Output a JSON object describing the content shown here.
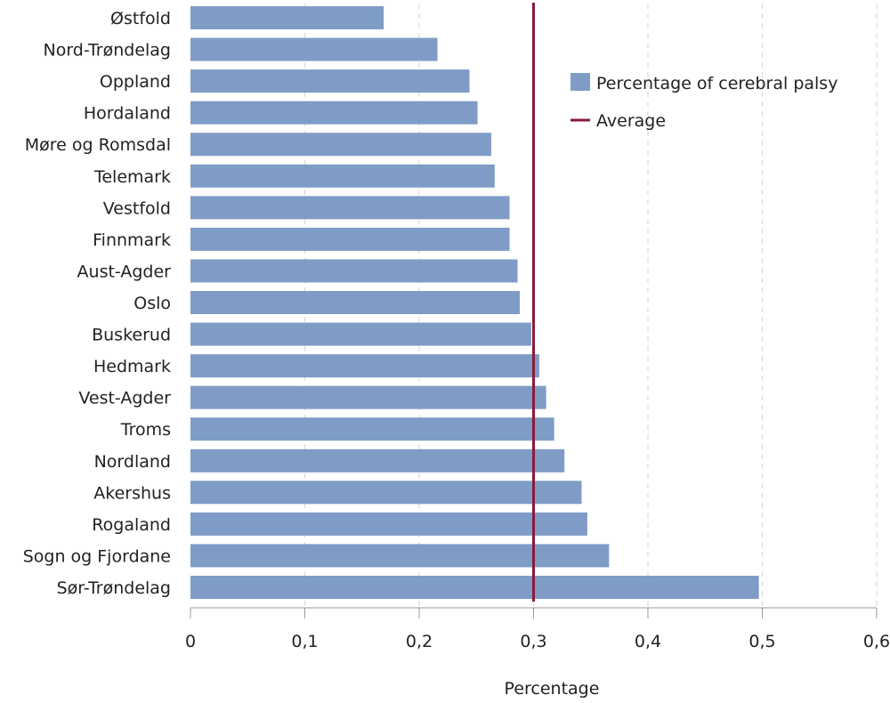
{
  "chart_data": {
    "type": "bar",
    "orientation": "horizontal",
    "title": "",
    "xlabel": "Percentage",
    "ylabel": "",
    "xlim": [
      0,
      0.6
    ],
    "xticks": [
      0,
      0.1,
      0.2,
      0.3,
      0.4,
      0.5,
      0.6
    ],
    "xtick_labels": [
      "0",
      "0,1",
      "0,2",
      "0,3",
      "0,4",
      "0,5",
      "0,6"
    ],
    "grid": "vertical dashed",
    "legend_position": "top-right",
    "categories": [
      "Østfold",
      "Nord-Trøndelag",
      "Oppland",
      "Hordaland",
      "Møre og Romsdal",
      "Telemark",
      "Vestfold",
      "Finnmark",
      "Aust-Agder",
      "Oslo",
      "Buskerud",
      "Hedmark",
      "Vest-Agder",
      "Troms",
      "Nordland",
      "Akershus",
      "Rogaland",
      "Sogn og Fjordane",
      "Sør-Trøndelag"
    ],
    "series": [
      {
        "name": "Percentage of cerebral palsy",
        "color": "#7f9cc6",
        "values": [
          0.169,
          0.216,
          0.244,
          0.251,
          0.263,
          0.266,
          0.279,
          0.279,
          0.286,
          0.288,
          0.298,
          0.305,
          0.311,
          0.318,
          0.327,
          0.342,
          0.347,
          0.366,
          0.497
        ]
      }
    ],
    "reference_line": {
      "name": "Average",
      "value": 0.3,
      "color": "#8b1a3a"
    }
  }
}
